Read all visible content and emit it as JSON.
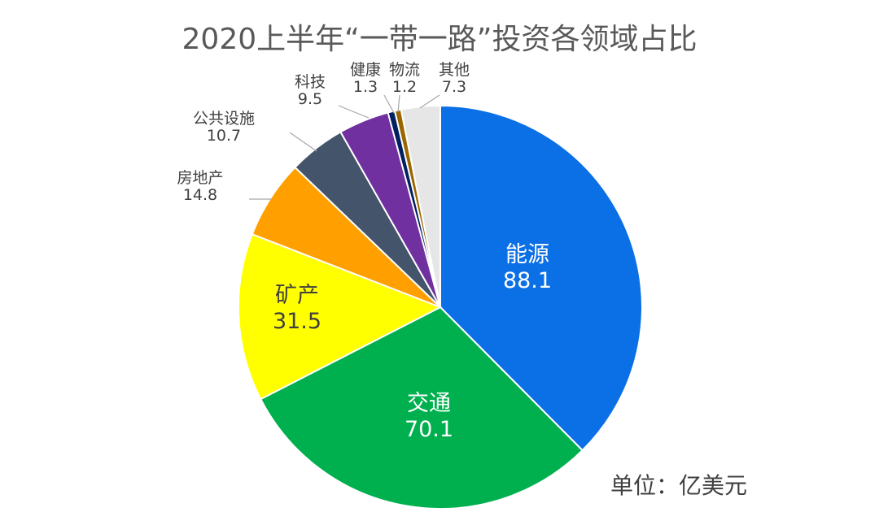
{
  "chart_data": {
    "type": "pie",
    "title": "2020上半年“一带一路”投资各领域占比",
    "unit": "单位：亿美元",
    "slices": [
      {
        "label": "能源",
        "value": 88.1,
        "color": "#0b6fe6",
        "text_color": "#ffffff"
      },
      {
        "label": "交通",
        "value": 70.1,
        "color": "#00b04f",
        "text_color": "#ffffff"
      },
      {
        "label": "矿产",
        "value": 31.5,
        "color": "#ffff00",
        "text_color": "#404040"
      },
      {
        "label": "房地产",
        "value": 14.8,
        "color": "#ffa000",
        "text_color": "#404040"
      },
      {
        "label": "公共设施",
        "value": 10.7,
        "color": "#44546a",
        "text_color": "#404040"
      },
      {
        "label": "科技",
        "value": 9.5,
        "color": "#7030a0",
        "text_color": "#404040"
      },
      {
        "label": "健康",
        "value": 1.3,
        "color": "#002060",
        "text_color": "#404040"
      },
      {
        "label": "物流",
        "value": 1.2,
        "color": "#9c6500",
        "text_color": "#404040"
      },
      {
        "label": "其他",
        "value": 7.3,
        "color": "#e7e6e6",
        "text_color": "#404040"
      }
    ],
    "start_angle_deg": 0,
    "direction": "clockwise"
  }
}
